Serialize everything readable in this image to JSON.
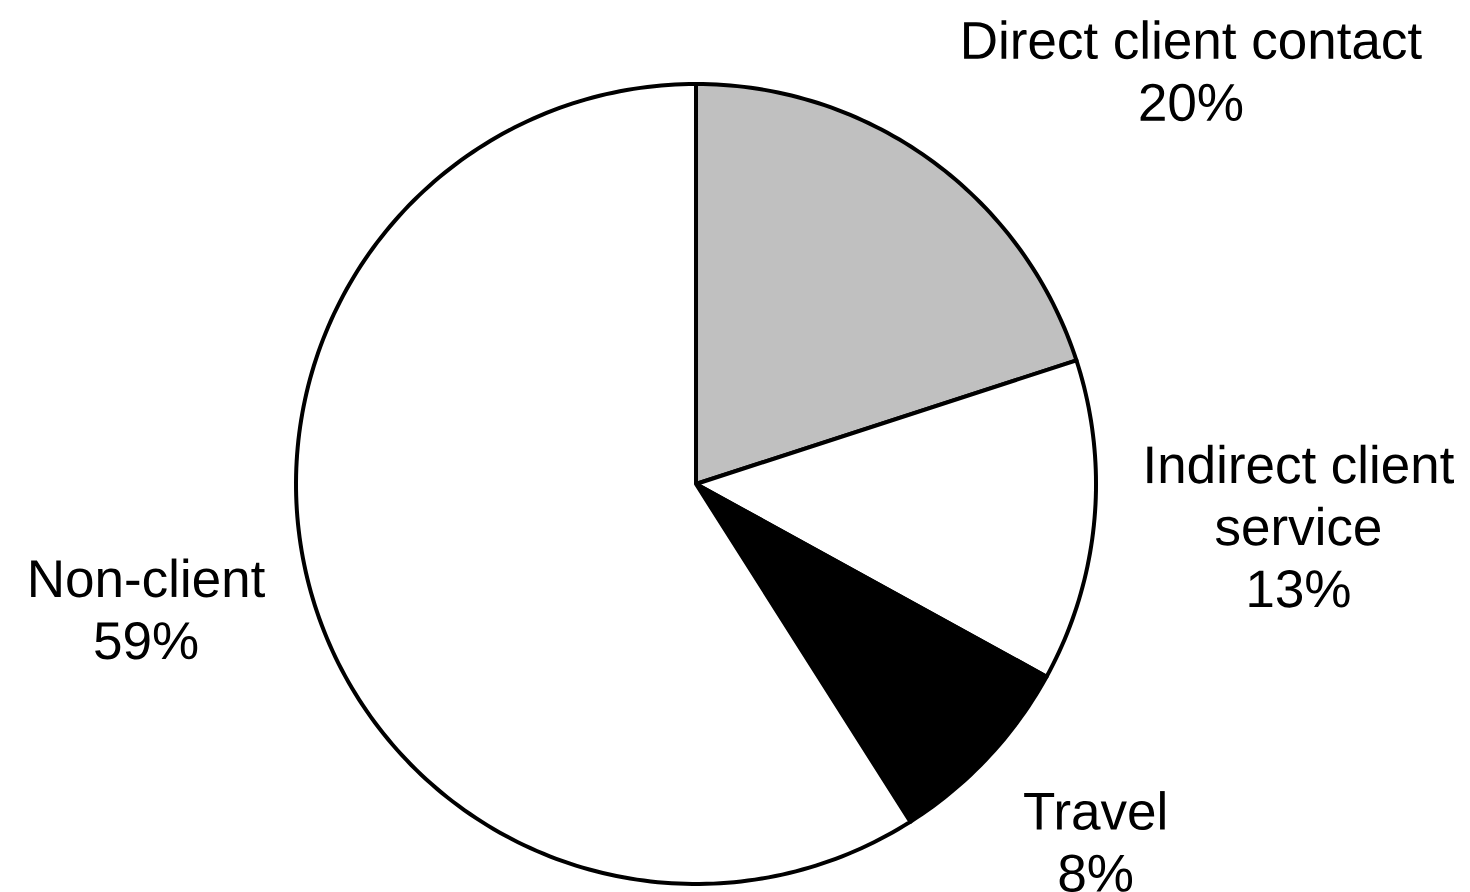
{
  "chart_data": {
    "type": "pie",
    "categories": [
      "Direct client contact",
      "Indirect client service",
      "Travel",
      "Non-client"
    ],
    "values": [
      20,
      13,
      8,
      59
    ],
    "colors": [
      "#c0c0c0",
      "#ffffff",
      "#000000",
      "#ffffff"
    ],
    "value_labels": [
      "20%",
      "13%",
      "8%",
      "59%"
    ]
  }
}
